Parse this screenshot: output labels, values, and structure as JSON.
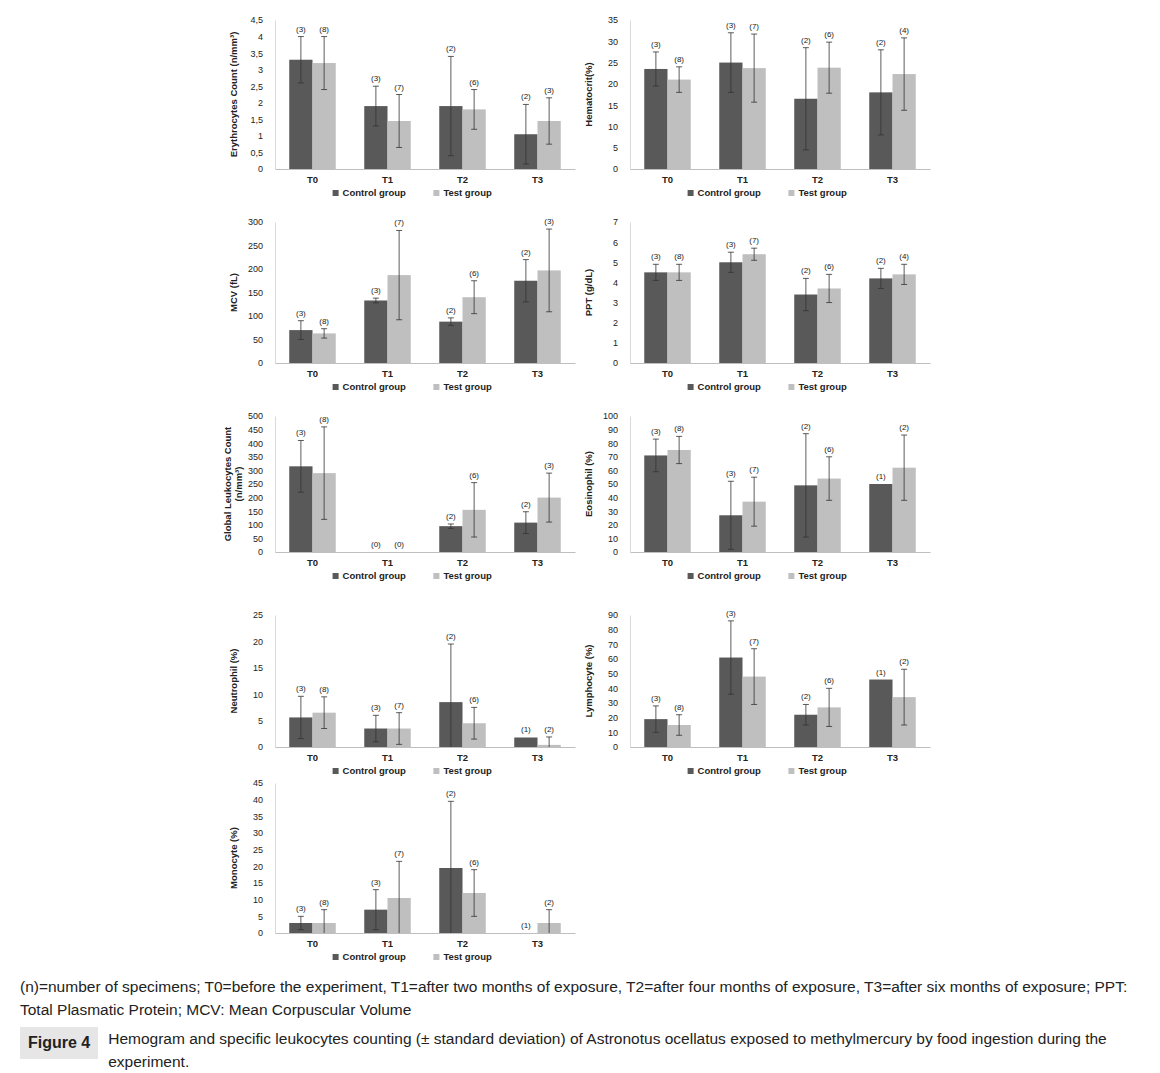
{
  "chart_data": [
    {
      "type": "bar",
      "ylabel": "Erythrocytes Count (n/mm³)",
      "categories": [
        "T0",
        "T1",
        "T2",
        "T3"
      ],
      "series": [
        {
          "name": "Control group",
          "color": "#595959",
          "values": [
            3.3,
            1.9,
            1.9,
            1.05
          ],
          "errors": [
            0.7,
            0.6,
            1.5,
            0.9
          ],
          "n_labels": [
            "(3)",
            "(3)",
            "(2)",
            "(2)"
          ]
        },
        {
          "name": "Test group",
          "color": "#bfbfbf",
          "values": [
            3.2,
            1.45,
            1.8,
            1.45
          ],
          "errors": [
            0.8,
            0.8,
            0.6,
            0.7
          ],
          "n_labels": [
            "(8)",
            "(7)",
            "(6)",
            "(3)"
          ]
        }
      ],
      "ylim": [
        0,
        4.5
      ],
      "yticks": [
        0,
        {
          "value": 0.5,
          "label": "0,5"
        },
        1,
        {
          "value": 1.5,
          "label": "1,5"
        },
        2,
        {
          "value": 2.5,
          "label": "2,5"
        },
        3,
        {
          "value": 3.5,
          "label": "3,5"
        },
        4,
        {
          "value": 4.5,
          "label": "4,5"
        }
      ],
      "legend": "bottom"
    },
    {
      "type": "bar",
      "ylabel": "Hematocrit(%)",
      "categories": [
        "T0",
        "T1",
        "T2",
        "T3"
      ],
      "series": [
        {
          "name": "Control group",
          "color": "#595959",
          "values": [
            23.5,
            25,
            16.5,
            18
          ],
          "errors": [
            4,
            7,
            12,
            10
          ],
          "n_labels": [
            "(3)",
            "(3)",
            "(2)",
            "(2)"
          ]
        },
        {
          "name": "Test group",
          "color": "#bfbfbf",
          "values": [
            21,
            23.7,
            23.8,
            22.3
          ],
          "errors": [
            3,
            8,
            6,
            8.5
          ],
          "n_labels": [
            "(8)",
            "(7)",
            "(6)",
            "(4)"
          ]
        }
      ],
      "ylim": [
        0,
        35
      ],
      "yticks": [
        0,
        5,
        10,
        15,
        20,
        25,
        30,
        35
      ],
      "legend": "bottom"
    },
    {
      "type": "bar",
      "ylabel": "MCV (fL)",
      "categories": [
        "T0",
        "T1",
        "T2",
        "T3"
      ],
      "series": [
        {
          "name": "Control group",
          "color": "#595959",
          "values": [
            70,
            133,
            88,
            175
          ],
          "errors": [
            20,
            5,
            8,
            45
          ],
          "n_labels": [
            "(3)",
            "(3)",
            "(2)",
            "(2)"
          ]
        },
        {
          "name": "Test group",
          "color": "#bfbfbf",
          "values": [
            63,
            187,
            140,
            197
          ],
          "errors": [
            10,
            95,
            35,
            88
          ],
          "n_labels": [
            "(8)",
            "(7)",
            "(6)",
            "(3)"
          ]
        }
      ],
      "ylim": [
        0,
        300
      ],
      "yticks": [
        0,
        50,
        100,
        150,
        200,
        250,
        300
      ],
      "legend": "bottom"
    },
    {
      "type": "bar",
      "ylabel": "PPT (g/dL)",
      "categories": [
        "T0",
        "T1",
        "T2",
        "T3"
      ],
      "series": [
        {
          "name": "Control group",
          "color": "#595959",
          "values": [
            4.5,
            5,
            3.4,
            4.2
          ],
          "errors": [
            0.4,
            0.5,
            0.8,
            0.5
          ],
          "n_labels": [
            "(3)",
            "(3)",
            "(2)",
            "(2)"
          ]
        },
        {
          "name": "Test group",
          "color": "#bfbfbf",
          "values": [
            4.5,
            5.4,
            3.7,
            4.4
          ],
          "errors": [
            0.4,
            0.3,
            0.7,
            0.5
          ],
          "n_labels": [
            "(8)",
            "(7)",
            "(6)",
            "(4)"
          ]
        }
      ],
      "ylim": [
        0,
        7
      ],
      "yticks": [
        0,
        1,
        2,
        3,
        4,
        5,
        6,
        7
      ],
      "legend": "bottom"
    },
    {
      "type": "bar",
      "ylabel": "Global Leukocytes Count\n(n/mm³)",
      "categories": [
        "T0",
        "T1",
        "T2",
        "T3"
      ],
      "series": [
        {
          "name": "Control group",
          "color": "#595959",
          "values": [
            315,
            0,
            95,
            108
          ],
          "errors": [
            95,
            0,
            8,
            40
          ],
          "n_labels": [
            "(3)",
            "(0)",
            "(2)",
            "(2)"
          ]
        },
        {
          "name": "Test group",
          "color": "#bfbfbf",
          "values": [
            290,
            0,
            155,
            200
          ],
          "errors": [
            170,
            0,
            100,
            90
          ],
          "n_labels": [
            "(8)",
            "(0)",
            "(6)",
            "(3)"
          ]
        }
      ],
      "ylim": [
        0,
        500
      ],
      "yticks": [
        0,
        50,
        100,
        150,
        200,
        250,
        300,
        350,
        400,
        450,
        500
      ],
      "legend": "bottom"
    },
    {
      "type": "bar",
      "ylabel": "Eosinophil (%)",
      "categories": [
        "T0",
        "T1",
        "T2",
        "T3"
      ],
      "series": [
        {
          "name": "Control group",
          "color": "#595959",
          "values": [
            71,
            27,
            49,
            50
          ],
          "errors": [
            12,
            25,
            38,
            0
          ],
          "n_labels": [
            "(3)",
            "(3)",
            "(2)",
            "(1)"
          ]
        },
        {
          "name": "Test group",
          "color": "#bfbfbf",
          "values": [
            75,
            37,
            54,
            62
          ],
          "errors": [
            10,
            18,
            16,
            24
          ],
          "n_labels": [
            "(8)",
            "(7)",
            "(6)",
            "(2)"
          ]
        }
      ],
      "ylim": [
        0,
        100
      ],
      "yticks": [
        0,
        10,
        20,
        30,
        40,
        50,
        60,
        70,
        80,
        90,
        100
      ],
      "legend": "bottom"
    },
    {
      "type": "bar",
      "ylabel": "Neutrophil (%)",
      "categories": [
        "T0",
        "T1",
        "T2",
        "T3"
      ],
      "series": [
        {
          "name": "Control group",
          "color": "#595959",
          "values": [
            5.6,
            3.5,
            8.5,
            1.8
          ],
          "errors": [
            4,
            2.5,
            11,
            0
          ],
          "n_labels": [
            "(3)",
            "(3)",
            "(2)",
            "(1)"
          ]
        },
        {
          "name": "Test group",
          "color": "#bfbfbf",
          "values": [
            6.5,
            3.5,
            4.5,
            0.4
          ],
          "errors": [
            3,
            3,
            3,
            1.5
          ],
          "n_labels": [
            "(8)",
            "(7)",
            "(6)",
            "(2)"
          ]
        }
      ],
      "ylim": [
        0,
        25
      ],
      "yticks": [
        0,
        5,
        10,
        15,
        20,
        25
      ],
      "legend": "bottom"
    },
    {
      "type": "bar",
      "ylabel": "Lymphocyte (%)",
      "categories": [
        "T0",
        "T1",
        "T2",
        "T3"
      ],
      "series": [
        {
          "name": "Control group",
          "color": "#595959",
          "values": [
            19,
            61,
            22,
            46
          ],
          "errors": [
            9,
            25,
            7,
            0
          ],
          "n_labels": [
            "(3)",
            "(3)",
            "(2)",
            "(1)"
          ]
        },
        {
          "name": "Test group",
          "color": "#bfbfbf",
          "values": [
            15,
            48,
            27,
            34
          ],
          "errors": [
            7,
            19,
            13,
            19
          ],
          "n_labels": [
            "(8)",
            "(7)",
            "(6)",
            "(2)"
          ]
        }
      ],
      "ylim": [
        0,
        90
      ],
      "yticks": [
        0,
        10,
        20,
        30,
        40,
        50,
        60,
        70,
        80,
        90
      ],
      "legend": "bottom"
    },
    {
      "type": "bar",
      "ylabel": "Monocyte (%)",
      "categories": [
        "T0",
        "T1",
        "T2",
        "T3"
      ],
      "series": [
        {
          "name": "Control group",
          "color": "#595959",
          "values": [
            3,
            7,
            19.5,
            0
          ],
          "errors": [
            2,
            6,
            20,
            0
          ],
          "n_labels": [
            "(3)",
            "(3)",
            "(2)",
            "(1)"
          ]
        },
        {
          "name": "Test group",
          "color": "#bfbfbf",
          "values": [
            3,
            10.5,
            12,
            3
          ],
          "errors": [
            4,
            11,
            7,
            4
          ],
          "n_labels": [
            "(8)",
            "(7)",
            "(6)",
            "(2)"
          ]
        }
      ],
      "ylim": [
        0,
        45
      ],
      "yticks": [
        0,
        5,
        10,
        15,
        20,
        25,
        30,
        35,
        40,
        45
      ],
      "legend": "bottom"
    }
  ],
  "notes": "(n)=number of specimens; T0=before the experiment, T1=after two months of exposure, T2=after four months of exposure, T3=after six months of exposure; PPT: Total Plasmatic Protein; MCV: Mean Corpuscular Volume",
  "figure": {
    "label": "Figure 4",
    "caption": "Hemogram and specific leukocytes counting (± standard deviation) of Astronotus ocellatus exposed to methylmercury by food ingestion during the experiment."
  }
}
